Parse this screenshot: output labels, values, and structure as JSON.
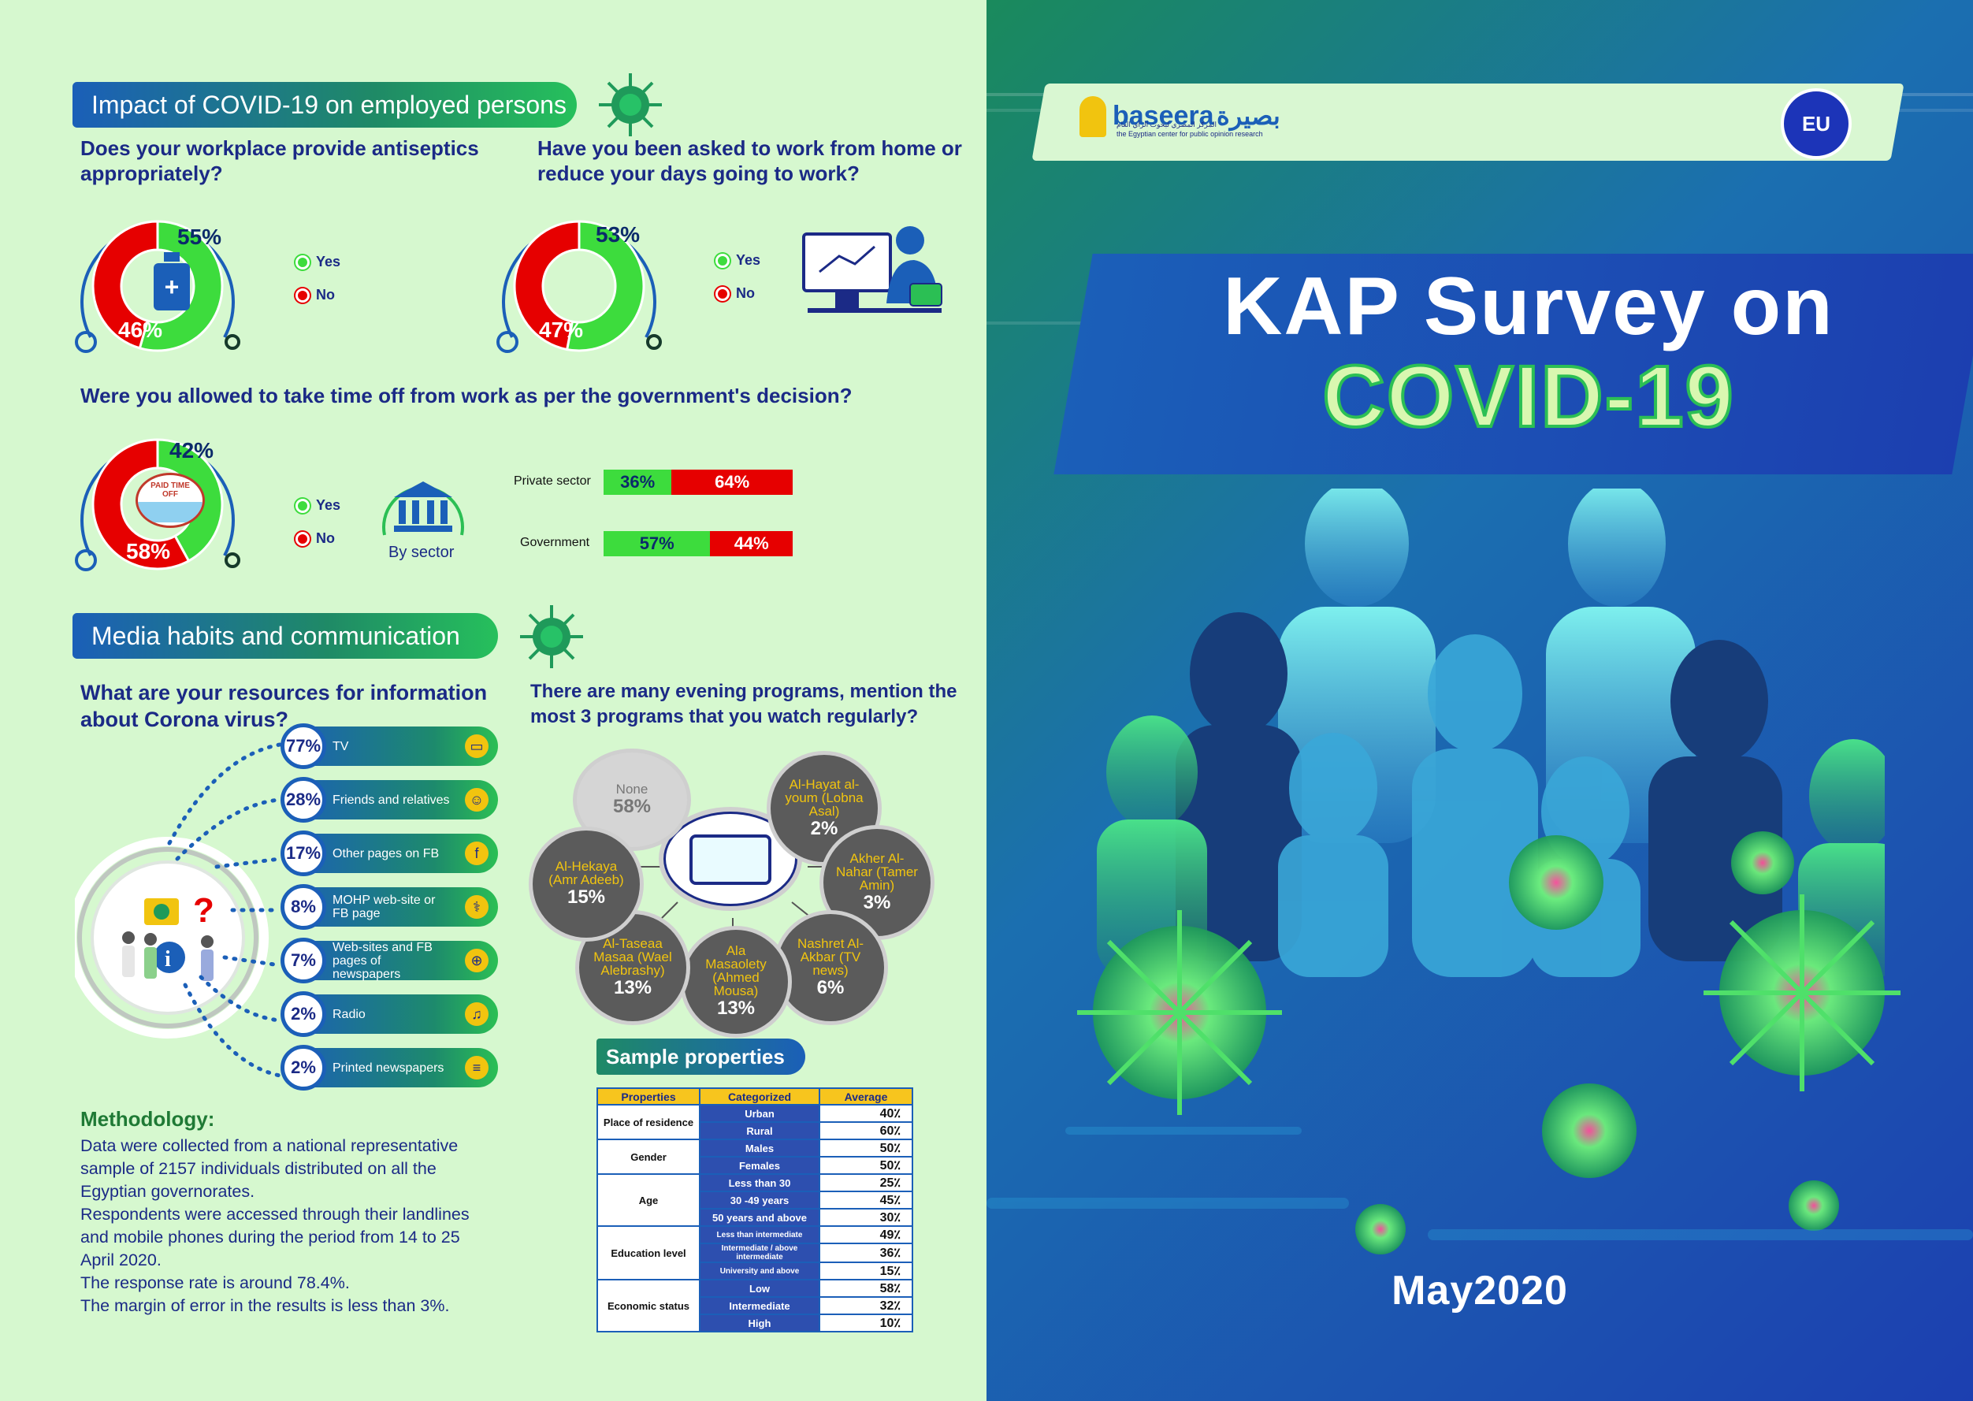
{
  "colors": {
    "green": "#3ddc3d",
    "red": "#e60000",
    "navy": "#1b2a86",
    "blue": "#1b5fb8",
    "yellow": "#f1c40f"
  },
  "impact": {
    "banner": "Impact of COVID-19 on employed persons",
    "q1": {
      "text": "Does your workplace provide antiseptics appropriately?",
      "yes": "55%",
      "no": "46%",
      "yes_val": 55,
      "no_val": 46
    },
    "q2": {
      "text": "Have you been asked to work from home or reduce your days going to work?",
      "yes": "53%",
      "no": "47%",
      "yes_val": 53,
      "no_val": 47
    },
    "q3": {
      "text": "Were you allowed to take time off from work as per the government's decision?",
      "yes": "42%",
      "no": "58%",
      "yes_val": 42,
      "no_val": 58,
      "sign": "PAID TIME OFF"
    },
    "legend_yes": "Yes",
    "legend_no": "No",
    "by_sector": "By sector",
    "sectors": [
      {
        "label": "Private sector",
        "yes": "36%",
        "no": "64%",
        "yes_val": 36,
        "no_val": 64
      },
      {
        "label": "Government",
        "yes": "57%",
        "no": "44%",
        "yes_val": 57,
        "no_val": 44
      }
    ]
  },
  "media": {
    "banner": "Media habits and communication",
    "q_resources": "What are your resources for information about Corona virus?",
    "resources": [
      {
        "pct": "77%",
        "label": "TV",
        "icon": "tv-icon",
        "glyph": "▭"
      },
      {
        "pct": "28%",
        "label": "Friends and relatives",
        "icon": "people-icon",
        "glyph": "☺"
      },
      {
        "pct": "17%",
        "label": "Other pages on FB",
        "icon": "facebook-icon",
        "glyph": "f"
      },
      {
        "pct": "8%",
        "label": "MOHP web-site or FB page",
        "icon": "ministry-icon",
        "glyph": "⚕"
      },
      {
        "pct": "7%",
        "label": "Web-sites and FB pages of newspapers",
        "icon": "globe-icon",
        "glyph": "⊕"
      },
      {
        "pct": "2%",
        "label": "Radio",
        "icon": "radio-icon",
        "glyph": "♫"
      },
      {
        "pct": "2%",
        "label": "Printed newspapers",
        "icon": "newspaper-icon",
        "glyph": "≡"
      }
    ],
    "q_programs": "There are many evening programs, mention the most 3 programs that you watch regularly?",
    "programs": [
      {
        "name": "None",
        "value": "58%"
      },
      {
        "name": "Al-Hayat al-youm (Lobna Asal)",
        "value": "2%"
      },
      {
        "name": "Akher Al-Nahar (Tamer Amin)",
        "value": "3%"
      },
      {
        "name": "Nashret Al-Akbar (TV news)",
        "value": "6%"
      },
      {
        "name": "Ala Masaolety (Ahmed Mousa)",
        "value": "13%"
      },
      {
        "name": "Al-Taseaa Masaa (Wael Alebrashy)",
        "value": "13%"
      },
      {
        "name": "Al-Hekaya (Amr Adeeb)",
        "value": "15%"
      }
    ]
  },
  "methodology": {
    "title": "Methodology:",
    "lines": [
      "Data were collected from a national representative",
      "sample of 2157 individuals distributed on all the",
      "Egyptian governorates.",
      "Respondents were accessed through their landlines",
      "and mobile phones during the period from 14 to 25",
      "April 2020.",
      "The response rate is around 78.4%.",
      "The margin of error in the results is less than 3%."
    ]
  },
  "sample": {
    "title": "Sample properties",
    "headers": [
      "Properties",
      "Categorized",
      "Average"
    ],
    "groups": [
      {
        "prop": "Place of residence",
        "rows": [
          [
            "Urban",
            "40٪"
          ],
          [
            "Rural",
            "60٪"
          ]
        ]
      },
      {
        "prop": "Gender",
        "rows": [
          [
            "Males",
            "50٪"
          ],
          [
            "Females",
            "50٪"
          ]
        ]
      },
      {
        "prop": "Age",
        "rows": [
          [
            "Less than 30",
            "25٪"
          ],
          [
            "30 -49 years",
            "45٪"
          ],
          [
            "50 years and above",
            "30٪"
          ]
        ]
      },
      {
        "prop": "Education level",
        "rows": [
          [
            "Less than intermediate",
            "49٪"
          ],
          [
            "Intermediate / above intermediate",
            "36٪"
          ],
          [
            "University and above",
            "15٪"
          ]
        ]
      },
      {
        "prop": "Economic status",
        "rows": [
          [
            "Low",
            "58٪"
          ],
          [
            "Intermediate",
            "32٪"
          ],
          [
            "High",
            "10٪"
          ]
        ]
      }
    ]
  },
  "cover": {
    "logo_en": "baseera",
    "logo_ar": "بصيرة",
    "logo_sub": "the Egyptian center for public opinion research",
    "logo_sub_ar": "المركز المصري لبحوث الرأي العام",
    "eu": "EU",
    "title1": "KAP Survey on",
    "title2": "COVID-19",
    "date": "May2020"
  }
}
